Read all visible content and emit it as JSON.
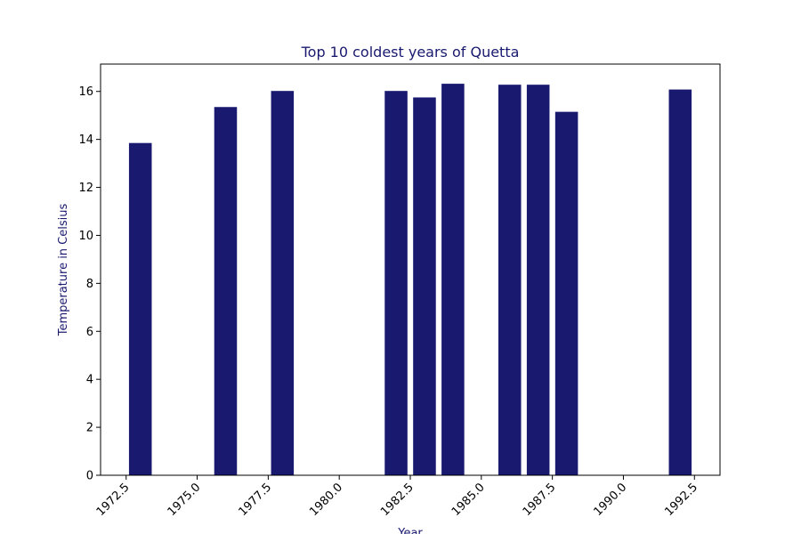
{
  "chart_data": {
    "type": "bar",
    "title": "Top 10 coldest years of Quetta",
    "xlabel": "Year",
    "ylabel": "Temperature in Celsius",
    "x": [
      1973,
      1976,
      1978,
      1982,
      1983,
      1984,
      1986,
      1987,
      1988,
      1992
    ],
    "values": [
      13.85,
      15.35,
      16.02,
      16.02,
      15.75,
      16.32,
      16.28,
      16.28,
      15.15,
      16.08
    ],
    "xlim": [
      1971.6,
      1993.4
    ],
    "ylim": [
      0,
      17.14
    ],
    "xticks": [
      1972.5,
      1975.0,
      1977.5,
      1980.0,
      1982.5,
      1985.0,
      1987.5,
      1990.0,
      1992.5
    ],
    "xtick_labels": [
      "1972.5",
      "1975.0",
      "1977.5",
      "1980.0",
      "1982.5",
      "1985.0",
      "1987.5",
      "1990.0",
      "1992.5"
    ],
    "yticks": [
      0,
      2,
      4,
      6,
      8,
      10,
      12,
      14,
      16
    ],
    "ytick_labels": [
      "0",
      "2",
      "4",
      "6",
      "8",
      "10",
      "12",
      "14",
      "16"
    ],
    "bar_width": 0.8,
    "grid": false,
    "bar_color": "#191970",
    "text_color": "#191970"
  }
}
